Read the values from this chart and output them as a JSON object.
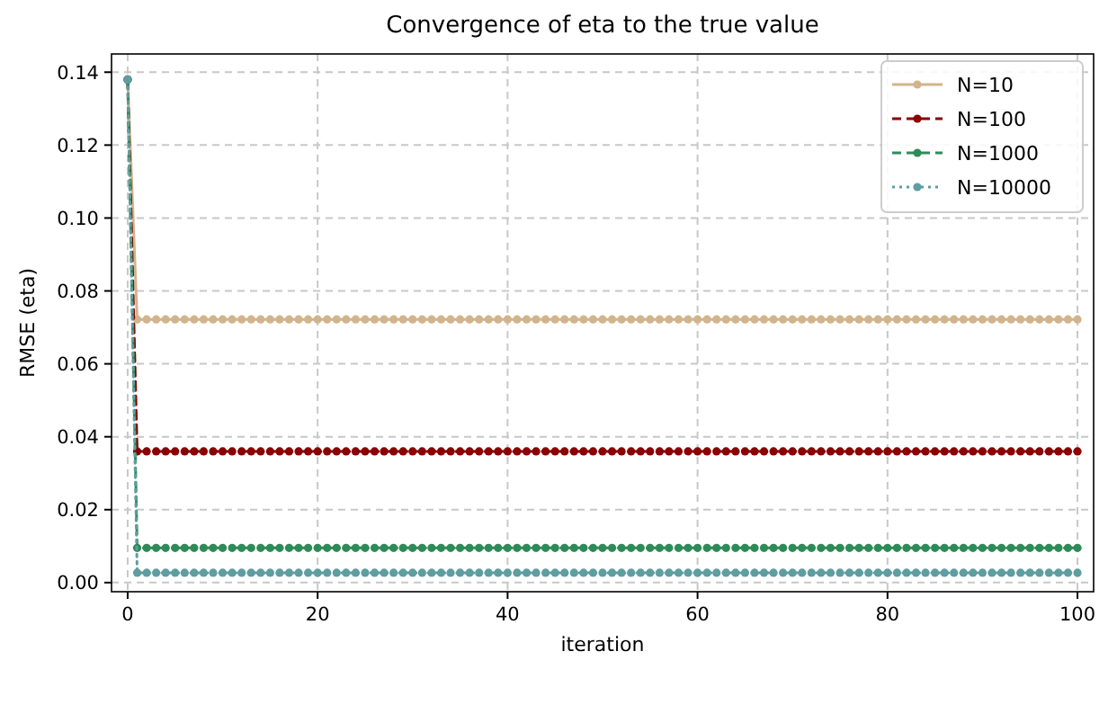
{
  "chart_data": {
    "type": "line",
    "title": "Convergence of eta to the true value",
    "xlabel": "iteration",
    "ylabel": "RMSE (eta)",
    "x": [
      0,
      1,
      2,
      3,
      4,
      5,
      6,
      7,
      8,
      9,
      10,
      11,
      12,
      13,
      14,
      15,
      16,
      17,
      18,
      19,
      20,
      21,
      22,
      23,
      24,
      25,
      26,
      27,
      28,
      29,
      30,
      31,
      32,
      33,
      34,
      35,
      36,
      37,
      38,
      39,
      40,
      41,
      42,
      43,
      44,
      45,
      46,
      47,
      48,
      49,
      50,
      51,
      52,
      53,
      54,
      55,
      56,
      57,
      58,
      59,
      60,
      61,
      62,
      63,
      64,
      65,
      66,
      67,
      68,
      69,
      70,
      71,
      72,
      73,
      74,
      75,
      76,
      77,
      78,
      79,
      80,
      81,
      82,
      83,
      84,
      85,
      86,
      87,
      88,
      89,
      90,
      91,
      92,
      93,
      94,
      95,
      96,
      97,
      98,
      99,
      100
    ],
    "series": [
      {
        "name": "N=10",
        "color": "#d2b48c",
        "line_style": "solid",
        "values": [
          0.138,
          0.0722,
          0.0722,
          0.0722,
          0.0722,
          0.0722,
          0.0722,
          0.0722,
          0.0722,
          0.0722,
          0.0722,
          0.0722,
          0.0722,
          0.0722,
          0.0722,
          0.0722,
          0.0722,
          0.0722,
          0.0722,
          0.0722,
          0.0722,
          0.0722,
          0.0722,
          0.0722,
          0.0722,
          0.0722,
          0.0722,
          0.0722,
          0.0722,
          0.0722,
          0.0722,
          0.0722,
          0.0722,
          0.0722,
          0.0722,
          0.0722,
          0.0722,
          0.0722,
          0.0722,
          0.0722,
          0.0722,
          0.0722,
          0.0722,
          0.0722,
          0.0722,
          0.0722,
          0.0722,
          0.0722,
          0.0722,
          0.0722,
          0.0722,
          0.0722,
          0.0722,
          0.0722,
          0.0722,
          0.0722,
          0.0722,
          0.0722,
          0.0722,
          0.0722,
          0.0722,
          0.0722,
          0.0722,
          0.0722,
          0.0722,
          0.0722,
          0.0722,
          0.0722,
          0.0722,
          0.0722,
          0.0722,
          0.0722,
          0.0722,
          0.0722,
          0.0722,
          0.0722,
          0.0722,
          0.0722,
          0.0722,
          0.0722,
          0.0722,
          0.0722,
          0.0722,
          0.0722,
          0.0722,
          0.0722,
          0.0722,
          0.0722,
          0.0722,
          0.0722,
          0.0722,
          0.0722,
          0.0722,
          0.0722,
          0.0722,
          0.0722,
          0.0722,
          0.0722,
          0.0722,
          0.0722,
          0.0722
        ]
      },
      {
        "name": "N=100",
        "color": "#8b0000",
        "line_style": "dashed",
        "values": [
          0.138,
          0.036,
          0.036,
          0.036,
          0.036,
          0.036,
          0.036,
          0.036,
          0.036,
          0.036,
          0.036,
          0.036,
          0.036,
          0.036,
          0.036,
          0.036,
          0.036,
          0.036,
          0.036,
          0.036,
          0.036,
          0.036,
          0.036,
          0.036,
          0.036,
          0.036,
          0.036,
          0.036,
          0.036,
          0.036,
          0.036,
          0.036,
          0.036,
          0.036,
          0.036,
          0.036,
          0.036,
          0.036,
          0.036,
          0.036,
          0.036,
          0.036,
          0.036,
          0.036,
          0.036,
          0.036,
          0.036,
          0.036,
          0.036,
          0.036,
          0.036,
          0.036,
          0.036,
          0.036,
          0.036,
          0.036,
          0.036,
          0.036,
          0.036,
          0.036,
          0.036,
          0.036,
          0.036,
          0.036,
          0.036,
          0.036,
          0.036,
          0.036,
          0.036,
          0.036,
          0.036,
          0.036,
          0.036,
          0.036,
          0.036,
          0.036,
          0.036,
          0.036,
          0.036,
          0.036,
          0.036,
          0.036,
          0.036,
          0.036,
          0.036,
          0.036,
          0.036,
          0.036,
          0.036,
          0.036,
          0.036,
          0.036,
          0.036,
          0.036,
          0.036,
          0.036,
          0.036,
          0.036,
          0.036,
          0.036,
          0.036
        ]
      },
      {
        "name": "N=1000",
        "color": "#2e8b57",
        "line_style": "dashed",
        "values": [
          0.138,
          0.0095,
          0.0095,
          0.0095,
          0.0095,
          0.0095,
          0.0095,
          0.0095,
          0.0095,
          0.0095,
          0.0095,
          0.0095,
          0.0095,
          0.0095,
          0.0095,
          0.0095,
          0.0095,
          0.0095,
          0.0095,
          0.0095,
          0.0095,
          0.0095,
          0.0095,
          0.0095,
          0.0095,
          0.0095,
          0.0095,
          0.0095,
          0.0095,
          0.0095,
          0.0095,
          0.0095,
          0.0095,
          0.0095,
          0.0095,
          0.0095,
          0.0095,
          0.0095,
          0.0095,
          0.0095,
          0.0095,
          0.0095,
          0.0095,
          0.0095,
          0.0095,
          0.0095,
          0.0095,
          0.0095,
          0.0095,
          0.0095,
          0.0095,
          0.0095,
          0.0095,
          0.0095,
          0.0095,
          0.0095,
          0.0095,
          0.0095,
          0.0095,
          0.0095,
          0.0095,
          0.0095,
          0.0095,
          0.0095,
          0.0095,
          0.0095,
          0.0095,
          0.0095,
          0.0095,
          0.0095,
          0.0095,
          0.0095,
          0.0095,
          0.0095,
          0.0095,
          0.0095,
          0.0095,
          0.0095,
          0.0095,
          0.0095,
          0.0095,
          0.0095,
          0.0095,
          0.0095,
          0.0095,
          0.0095,
          0.0095,
          0.0095,
          0.0095,
          0.0095,
          0.0095,
          0.0095,
          0.0095,
          0.0095,
          0.0095,
          0.0095,
          0.0095,
          0.0095,
          0.0095,
          0.0095,
          0.0095
        ]
      },
      {
        "name": "N=10000",
        "color": "#5f9ea0",
        "line_style": "dotted",
        "values": [
          0.138,
          0.0027,
          0.0027,
          0.0027,
          0.0027,
          0.0027,
          0.0027,
          0.0027,
          0.0027,
          0.0027,
          0.0027,
          0.0027,
          0.0027,
          0.0027,
          0.0027,
          0.0027,
          0.0027,
          0.0027,
          0.0027,
          0.0027,
          0.0027,
          0.0027,
          0.0027,
          0.0027,
          0.0027,
          0.0027,
          0.0027,
          0.0027,
          0.0027,
          0.0027,
          0.0027,
          0.0027,
          0.0027,
          0.0027,
          0.0027,
          0.0027,
          0.0027,
          0.0027,
          0.0027,
          0.0027,
          0.0027,
          0.0027,
          0.0027,
          0.0027,
          0.0027,
          0.0027,
          0.0027,
          0.0027,
          0.0027,
          0.0027,
          0.0027,
          0.0027,
          0.0027,
          0.0027,
          0.0027,
          0.0027,
          0.0027,
          0.0027,
          0.0027,
          0.0027,
          0.0027,
          0.0027,
          0.0027,
          0.0027,
          0.0027,
          0.0027,
          0.0027,
          0.0027,
          0.0027,
          0.0027,
          0.0027,
          0.0027,
          0.0027,
          0.0027,
          0.0027,
          0.0027,
          0.0027,
          0.0027,
          0.0027,
          0.0027,
          0.0027,
          0.0027,
          0.0027,
          0.0027,
          0.0027,
          0.0027,
          0.0027,
          0.0027,
          0.0027,
          0.0027,
          0.0027,
          0.0027,
          0.0027,
          0.0027,
          0.0027,
          0.0027,
          0.0027,
          0.0027,
          0.0027,
          0.0027,
          0.0027
        ]
      }
    ],
    "xlim": [
      -1.7,
      101.7
    ],
    "xticks": [
      0,
      20,
      40,
      60,
      80,
      100
    ],
    "ylim": [
      -0.0025,
      0.145
    ],
    "yticks": [
      {
        "value": 0,
        "label": "0.00"
      },
      {
        "value": 0.02,
        "label": "0.02"
      },
      {
        "value": 0.04,
        "label": "0.04"
      },
      {
        "value": 0.06,
        "label": "0.06"
      },
      {
        "value": 0.08,
        "label": "0.08"
      },
      {
        "value": 0.1,
        "label": "0.10"
      },
      {
        "value": 0.12,
        "label": "0.12"
      },
      {
        "value": 0.14,
        "label": "0.14"
      }
    ],
    "grid": true,
    "legend": "top right",
    "marker": "circle"
  }
}
